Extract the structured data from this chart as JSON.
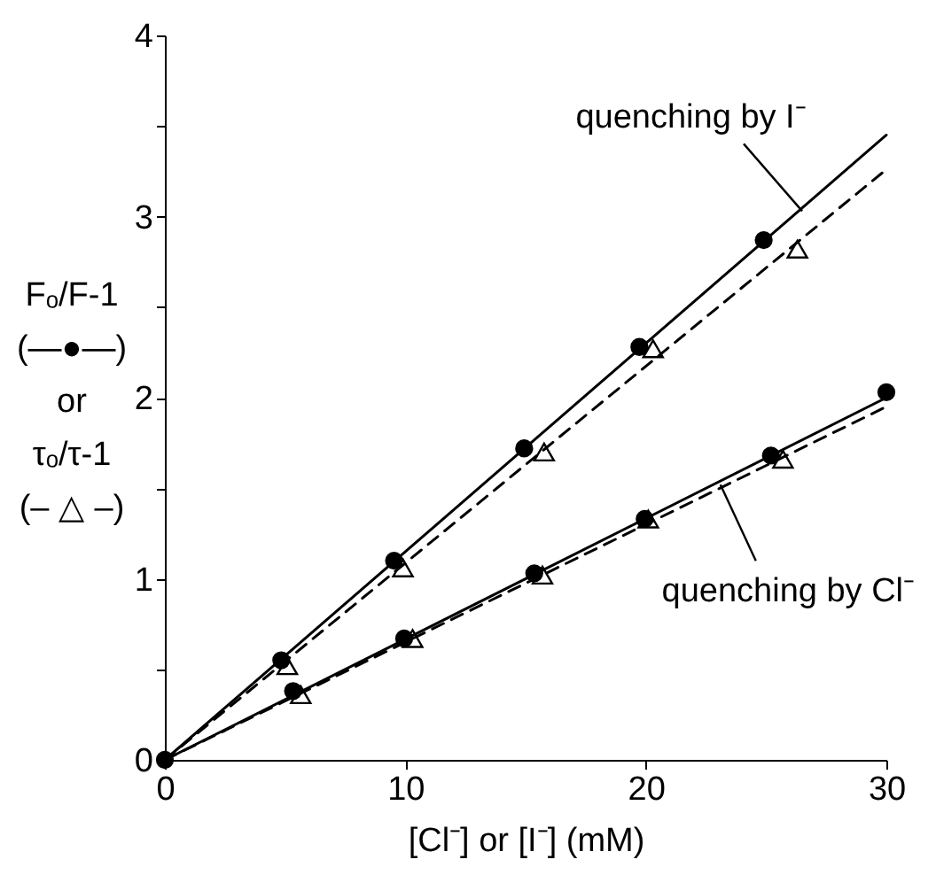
{
  "chart_data": {
    "type": "scatter",
    "xlabel": "[Cl⁻] or [I⁻]   (mM)",
    "ylabel": "Fₒ/F-1\n(—●—)\nor\nτₒ/τ-1\n(– △ –)",
    "xlim": [
      0,
      30
    ],
    "xticks": [
      0,
      10,
      20,
      30
    ],
    "ylim": [
      0,
      4
    ],
    "yticks": [
      0,
      {
        "value": 0.5,
        "label": null
      },
      1,
      {
        "value": 1.5,
        "label": null
      },
      2,
      {
        "value": 2.5,
        "label": null
      },
      3,
      {
        "value": 3.5,
        "label": null
      },
      4
    ],
    "grid": false,
    "series": [
      {
        "marker": "circle",
        "color": "#000000",
        "x": [
          0,
          4.84,
          9.53,
          14.94,
          19.73,
          24.9
        ],
        "values": [
          0,
          0.55,
          1.1,
          1.72,
          2.28,
          2.87
        ]
      },
      {
        "marker": "triangle",
        "color": "#000000",
        "x": [
          5.09,
          9.9,
          15.77,
          20.3,
          26.3
        ],
        "values": [
          0.52,
          1.06,
          1.7,
          2.27,
          2.82
        ]
      },
      {
        "marker": "circle",
        "color": "#000000",
        "x": [
          5.33,
          9.95,
          15.36,
          19.95,
          25.2,
          30.0
        ],
        "values": [
          0.38,
          0.67,
          1.03,
          1.33,
          1.68,
          2.03
        ]
      },
      {
        "marker": "triangle",
        "color": "#000000",
        "x": [
          5.65,
          10.3,
          15.7,
          20.1,
          25.7
        ],
        "values": [
          0.36,
          0.67,
          1.02,
          1.33,
          1.66
        ]
      },
      {
        "type": "line",
        "marker": "none",
        "line_style": "solid",
        "color": "#000000",
        "x": [
          0,
          30
        ],
        "values": [
          0,
          3.45
        ]
      },
      {
        "type": "line",
        "marker": "none",
        "line_style": "dashed",
        "color": "#000000",
        "x": [
          0,
          30
        ],
        "values": [
          0,
          3.26
        ]
      },
      {
        "type": "line",
        "marker": "none",
        "line_style": "solid",
        "color": "#000000",
        "x": [
          0,
          30
        ],
        "values": [
          0,
          2.0
        ]
      },
      {
        "type": "line",
        "marker": "none",
        "line_style": "dashed",
        "color": "#000000",
        "x": [
          0,
          30
        ],
        "values": [
          0,
          1.95
        ]
      }
    ],
    "annotations": [
      {
        "text": "quenching by I⁻",
        "x": 26.5,
        "y": 3.03
      },
      {
        "text": "quenching by Cl⁻",
        "x": 23.1,
        "y": 1.52
      }
    ]
  }
}
